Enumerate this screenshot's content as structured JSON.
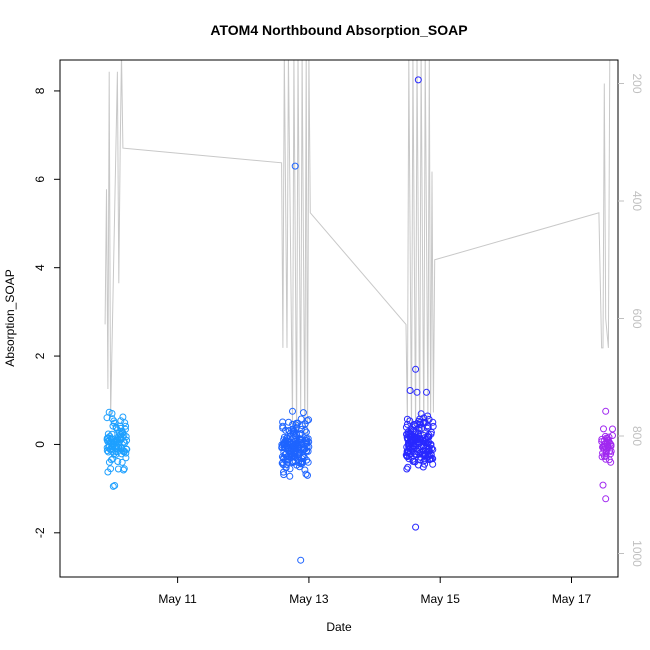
{
  "chart_data": {
    "type": "scatter",
    "title": "ATOM4 Northbound Absorption_SOAP",
    "xlabel": "Date",
    "ylabel": "Absorption_SOAP",
    "xlim": [
      "2023-05-09 05:00",
      "2023-05-17 17:00"
    ],
    "ylim": [
      -3.0,
      8.7
    ],
    "x_ticks": [
      {
        "label": "May 11",
        "value": "2023-05-11 00:00"
      },
      {
        "label": "May 13",
        "value": "2023-05-13 00:00"
      },
      {
        "label": "May 15",
        "value": "2023-05-15 00:00"
      },
      {
        "label": "May 17",
        "value": "2023-05-17 00:00"
      }
    ],
    "y_ticks": [
      -2,
      0,
      2,
      4,
      6,
      8
    ],
    "y2_range": [
      1040,
      160
    ],
    "y2_ticks": [
      200,
      400,
      600,
      800,
      1000
    ],
    "grid": false,
    "legend": "none",
    "colors": {
      "line": "#c8c8c8",
      "cluster1": "#1ea0ff",
      "cluster2": "#1e64ff",
      "cluster3": "#2828ff",
      "cluster4": "#a028f0",
      "right_axis": "#c0c0c0"
    },
    "clusters": [
      {
        "color_key": "cluster1",
        "x_start": "2023-05-09 22:00",
        "x_end": "2023-05-10 05:30",
        "seed": 11,
        "n": 90,
        "spread": 0.25,
        "center": 0.05,
        "points": [
          {
            "x": "2023-05-09 23:00",
            "y": 0.73
          },
          {
            "x": "2023-05-10 00:00",
            "y": 0.7
          },
          {
            "x": "2023-05-10 04:00",
            "y": 0.62
          },
          {
            "x": "2023-05-10 00:30",
            "y": -0.95
          },
          {
            "x": "2023-05-10 01:00",
            "y": -0.93
          },
          {
            "x": "2023-05-09 23:30",
            "y": -0.55
          },
          {
            "x": "2023-05-10 04:30",
            "y": -0.55
          }
        ]
      },
      {
        "color_key": "cluster2",
        "x_start": "2023-05-12 14:00",
        "x_end": "2023-05-13 00:00",
        "seed": 23,
        "n": 170,
        "spread": 0.28,
        "center": -0.05,
        "points": [
          {
            "x": "2023-05-12 19:00",
            "y": 6.3
          },
          {
            "x": "2023-05-12 18:00",
            "y": 0.75
          },
          {
            "x": "2023-05-12 22:00",
            "y": 0.72
          },
          {
            "x": "2023-05-12 21:00",
            "y": -2.62
          },
          {
            "x": "2023-05-12 17:00",
            "y": -0.72
          },
          {
            "x": "2023-05-12 23:30",
            "y": -0.7
          }
        ]
      },
      {
        "color_key": "cluster3",
        "x_start": "2023-05-14 11:30",
        "x_end": "2023-05-14 21:30",
        "seed": 37,
        "n": 170,
        "spread": 0.25,
        "center": 0.0,
        "points": [
          {
            "x": "2023-05-14 16:00",
            "y": 8.25
          },
          {
            "x": "2023-05-14 15:00",
            "y": 1.7
          },
          {
            "x": "2023-05-14 13:00",
            "y": 1.22
          },
          {
            "x": "2023-05-14 15:30",
            "y": 1.18
          },
          {
            "x": "2023-05-14 19:00",
            "y": 1.18
          },
          {
            "x": "2023-05-14 15:00",
            "y": -1.87
          },
          {
            "x": "2023-05-14 12:00",
            "y": 0.57
          },
          {
            "x": "2023-05-14 18:00",
            "y": 0.6
          }
        ]
      },
      {
        "color_key": "cluster4",
        "x_start": "2023-05-17 11:00",
        "x_end": "2023-05-17 15:00",
        "seed": 53,
        "n": 38,
        "spread": 0.2,
        "center": 0.0,
        "points": [
          {
            "x": "2023-05-17 12:30",
            "y": 0.75
          },
          {
            "x": "2023-05-17 11:30",
            "y": -0.92
          },
          {
            "x": "2023-05-17 12:30",
            "y": -1.23
          },
          {
            "x": "2023-05-17 15:00",
            "y": 0.35
          }
        ]
      }
    ],
    "line": [
      {
        "x": "2023-05-09 21:30",
        "y2": 610
      },
      {
        "x": "2023-05-09 22:00",
        "y2": 380
      },
      {
        "x": "2023-05-09 22:30",
        "y2": 720
      },
      {
        "x": "2023-05-09 23:00",
        "y2": 180
      },
      {
        "x": "2023-05-09 23:30",
        "y2": 770
      },
      {
        "x": "2023-05-10 02:00",
        "y2": 180
      },
      {
        "x": "2023-05-10 02:30",
        "y2": 540
      },
      {
        "x": "2023-05-10 03:00",
        "y2": 310
      },
      {
        "x": "2023-05-10 03:30",
        "y2": 150
      },
      {
        "x": "2023-05-10 04:00",
        "y2": 310
      },
      {
        "x": "2023-05-12 14:00",
        "y2": 335
      },
      {
        "x": "2023-05-12 14:30",
        "y2": 650
      },
      {
        "x": "2023-05-12 15:00",
        "y2": 150
      },
      {
        "x": "2023-05-12 16:00",
        "y2": 650
      },
      {
        "x": "2023-05-12 16:30",
        "y2": 150
      },
      {
        "x": "2023-05-12 18:00",
        "y2": 780
      },
      {
        "x": "2023-05-12 18:30",
        "y2": 150
      },
      {
        "x": "2023-05-12 19:30",
        "y2": 800
      },
      {
        "x": "2023-05-12 20:00",
        "y2": 150
      },
      {
        "x": "2023-05-12 21:00",
        "y2": 760
      },
      {
        "x": "2023-05-12 21:30",
        "y2": 150
      },
      {
        "x": "2023-05-12 22:30",
        "y2": 800
      },
      {
        "x": "2023-05-12 23:00",
        "y2": 150
      },
      {
        "x": "2023-05-12 23:30",
        "y2": 820
      },
      {
        "x": "2023-05-13 00:00",
        "y2": 150
      },
      {
        "x": "2023-05-13 00:30",
        "y2": 420
      },
      {
        "x": "2023-05-14 11:30",
        "y2": 610
      },
      {
        "x": "2023-05-14 12:00",
        "y2": 780
      },
      {
        "x": "2023-05-14 12:30",
        "y2": 150
      },
      {
        "x": "2023-05-14 13:30",
        "y2": 800
      },
      {
        "x": "2023-05-14 14:00",
        "y2": 150
      },
      {
        "x": "2023-05-14 15:00",
        "y2": 800
      },
      {
        "x": "2023-05-14 15:30",
        "y2": 150
      },
      {
        "x": "2023-05-14 16:30",
        "y2": 800
      },
      {
        "x": "2023-05-14 17:00",
        "y2": 150
      },
      {
        "x": "2023-05-14 18:00",
        "y2": 800
      },
      {
        "x": "2023-05-14 18:30",
        "y2": 150
      },
      {
        "x": "2023-05-14 19:30",
        "y2": 780
      },
      {
        "x": "2023-05-14 20:00",
        "y2": 150
      },
      {
        "x": "2023-05-14 20:30",
        "y2": 780
      },
      {
        "x": "2023-05-14 21:00",
        "y2": 350
      },
      {
        "x": "2023-05-14 21:30",
        "y2": 760
      },
      {
        "x": "2023-05-14 22:00",
        "y2": 500
      },
      {
        "x": "2023-05-17 10:00",
        "y2": 420
      },
      {
        "x": "2023-05-17 11:00",
        "y2": 650
      },
      {
        "x": "2023-05-17 11:30",
        "y2": 650
      },
      {
        "x": "2023-05-17 12:00",
        "y2": 200
      },
      {
        "x": "2023-05-17 12:30",
        "y2": 600
      },
      {
        "x": "2023-05-17 13:30",
        "y2": 650
      },
      {
        "x": "2023-05-17 14:00",
        "y2": 150
      }
    ]
  }
}
